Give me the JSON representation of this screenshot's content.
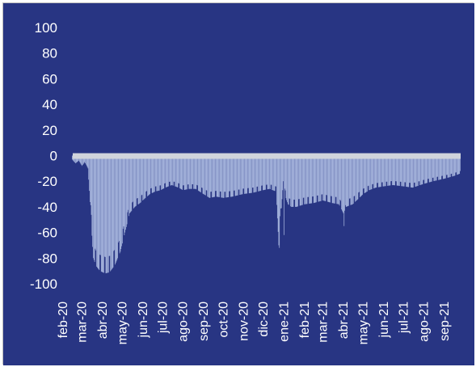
{
  "colors": {
    "background": "#283583",
    "bars": "#b9c8ea",
    "zero_band": "#d0d4dc",
    "text": "#ffffff"
  },
  "chart_data": {
    "type": "area",
    "title": "",
    "xlabel": "",
    "ylabel": "",
    "ylim": [
      -100,
      100
    ],
    "y_ticks": [
      100,
      80,
      60,
      40,
      20,
      0,
      -20,
      -40,
      -60,
      -80,
      -100
    ],
    "x_ticks": [
      "feb-20",
      "mar-20",
      "abr-20",
      "may-20",
      "jun-20",
      "jul-20",
      "ago-20",
      "sep-20",
      "oct-20",
      "nov-20",
      "dic-20",
      "ene-21",
      "feb-21",
      "mar-21",
      "abr-21",
      "may-21",
      "jun-21",
      "jul-21",
      "ago-21",
      "sep-21"
    ],
    "grid": false,
    "legend": "none",
    "series": [
      {
        "frequency": "daily",
        "start": "2020-02-15",
        "end": "2021-09-25",
        "x": [
          "2020-02-15",
          "2020-02-20",
          "2020-02-25",
          "2020-03-01",
          "2020-03-05",
          "2020-03-10",
          "2020-03-14",
          "2020-03-18",
          "2020-03-22",
          "2020-03-28",
          "2020-04-05",
          "2020-04-12",
          "2020-04-20",
          "2020-04-28",
          "2020-05-05",
          "2020-05-12",
          "2020-05-20",
          "2020-05-28",
          "2020-06-05",
          "2020-06-12",
          "2020-06-20",
          "2020-06-28",
          "2020-07-05",
          "2020-07-15",
          "2020-07-25",
          "2020-08-01",
          "2020-08-10",
          "2020-08-20",
          "2020-09-01",
          "2020-09-10",
          "2020-09-20",
          "2020-10-01",
          "2020-10-15",
          "2020-10-31",
          "2020-11-15",
          "2020-11-30",
          "2020-12-10",
          "2020-12-20",
          "2020-12-24",
          "2020-12-25",
          "2020-12-26",
          "2020-12-31",
          "2021-01-01",
          "2021-01-02",
          "2021-01-07",
          "2021-01-12",
          "2021-01-20",
          "2021-02-01",
          "2021-02-15",
          "2021-03-01",
          "2021-03-15",
          "2021-03-25",
          "2021-04-01",
          "2021-04-02",
          "2021-04-05",
          "2021-04-15",
          "2021-04-25",
          "2021-05-01",
          "2021-05-10",
          "2021-05-20",
          "2021-06-01",
          "2021-06-15",
          "2021-07-01",
          "2021-07-15",
          "2021-08-01",
          "2021-08-15",
          "2021-09-01",
          "2021-09-15",
          "2021-09-25"
        ],
        "values": [
          -3,
          -6,
          -4,
          -8,
          -5,
          -10,
          -45,
          -80,
          -86,
          -90,
          -92,
          -91,
          -85,
          -75,
          -60,
          -45,
          -40,
          -37,
          -33,
          -30,
          -28,
          -27,
          -25,
          -23,
          -25,
          -27,
          -26,
          -26,
          -30,
          -33,
          -32,
          -33,
          -32,
          -30,
          -29,
          -27,
          -26,
          -28,
          -70,
          -72,
          -55,
          -20,
          -62,
          -30,
          -38,
          -40,
          -40,
          -38,
          -37,
          -35,
          -37,
          -38,
          -45,
          -55,
          -40,
          -38,
          -33,
          -30,
          -27,
          -25,
          -24,
          -23,
          -24,
          -25,
          -22,
          -20,
          -18,
          -16,
          -14
        ]
      }
    ]
  }
}
